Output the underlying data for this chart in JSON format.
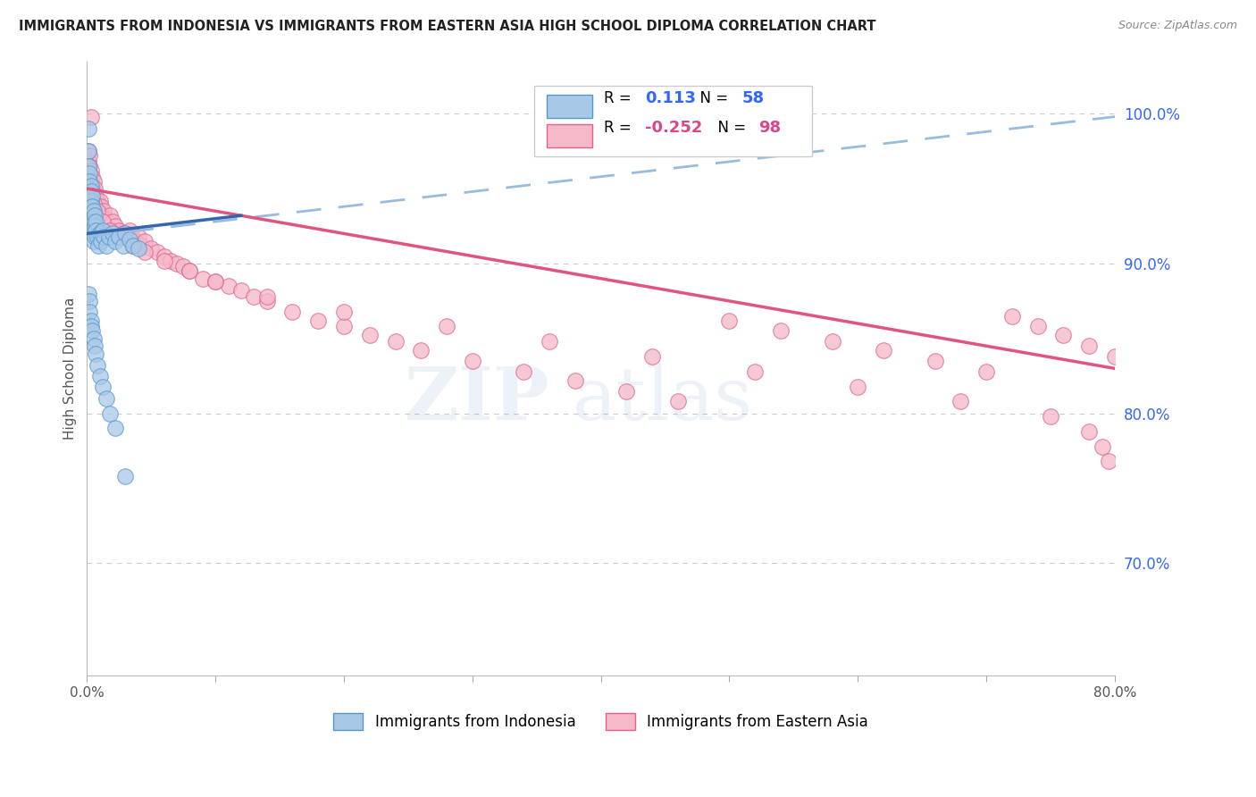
{
  "title": "IMMIGRANTS FROM INDONESIA VS IMMIGRANTS FROM EASTERN ASIA HIGH SCHOOL DIPLOMA CORRELATION CHART",
  "source": "Source: ZipAtlas.com",
  "ylabel": "High School Diploma",
  "xlim": [
    0.0,
    0.8
  ],
  "ylim": [
    0.625,
    1.035
  ],
  "y_ticks_right": [
    0.7,
    0.8,
    0.9,
    1.0
  ],
  "y_tick_labels_right": [
    "70.0%",
    "80.0%",
    "90.0%",
    "100.0%"
  ],
  "blue_fill": "#a8c8e8",
  "blue_edge": "#5599cc",
  "pink_fill": "#f5b8c8",
  "pink_edge": "#e06090",
  "blue_line": "#3366aa",
  "pink_line": "#e05580",
  "dash_line": "#99bbdd",
  "grid_color": "#cccccc",
  "r_blue": "0.113",
  "n_blue": "58",
  "r_pink": "-0.252",
  "n_pink": "98",
  "indo_x": [
    0.001,
    0.001,
    0.001,
    0.002,
    0.002,
    0.002,
    0.002,
    0.002,
    0.003,
    0.003,
    0.003,
    0.003,
    0.003,
    0.004,
    0.004,
    0.004,
    0.004,
    0.005,
    0.005,
    0.005,
    0.005,
    0.006,
    0.006,
    0.006,
    0.007,
    0.007,
    0.008,
    0.009,
    0.01,
    0.011,
    0.012,
    0.013,
    0.015,
    0.017,
    0.02,
    0.022,
    0.025,
    0.028,
    0.03,
    0.033,
    0.036,
    0.04,
    0.001,
    0.002,
    0.002,
    0.003,
    0.003,
    0.004,
    0.005,
    0.006,
    0.007,
    0.008,
    0.01,
    0.012,
    0.015,
    0.018,
    0.022,
    0.03
  ],
  "indo_y": [
    0.99,
    0.975,
    0.965,
    0.96,
    0.955,
    0.95,
    0.945,
    0.94,
    0.952,
    0.948,
    0.942,
    0.938,
    0.932,
    0.945,
    0.938,
    0.928,
    0.922,
    0.935,
    0.928,
    0.92,
    0.915,
    0.932,
    0.925,
    0.918,
    0.928,
    0.922,
    0.918,
    0.912,
    0.92,
    0.915,
    0.922,
    0.918,
    0.912,
    0.918,
    0.92,
    0.915,
    0.918,
    0.912,
    0.92,
    0.916,
    0.912,
    0.91,
    0.88,
    0.875,
    0.868,
    0.862,
    0.858,
    0.855,
    0.85,
    0.845,
    0.84,
    0.832,
    0.825,
    0.818,
    0.81,
    0.8,
    0.79,
    0.758
  ],
  "east_x": [
    0.001,
    0.001,
    0.002,
    0.002,
    0.002,
    0.003,
    0.003,
    0.003,
    0.004,
    0.004,
    0.004,
    0.005,
    0.005,
    0.005,
    0.006,
    0.006,
    0.007,
    0.007,
    0.008,
    0.008,
    0.009,
    0.01,
    0.01,
    0.011,
    0.012,
    0.013,
    0.015,
    0.016,
    0.018,
    0.02,
    0.022,
    0.025,
    0.028,
    0.03,
    0.033,
    0.035,
    0.038,
    0.04,
    0.042,
    0.045,
    0.05,
    0.055,
    0.06,
    0.065,
    0.07,
    0.075,
    0.08,
    0.09,
    0.1,
    0.11,
    0.12,
    0.13,
    0.14,
    0.16,
    0.18,
    0.2,
    0.22,
    0.24,
    0.26,
    0.3,
    0.34,
    0.38,
    0.42,
    0.46,
    0.5,
    0.54,
    0.58,
    0.62,
    0.66,
    0.7,
    0.72,
    0.74,
    0.76,
    0.78,
    0.8,
    0.003,
    0.005,
    0.008,
    0.012,
    0.018,
    0.025,
    0.035,
    0.045,
    0.06,
    0.08,
    0.1,
    0.14,
    0.2,
    0.28,
    0.36,
    0.44,
    0.52,
    0.6,
    0.68,
    0.75,
    0.78,
    0.79,
    0.795
  ],
  "east_y": [
    0.975,
    0.968,
    0.972,
    0.965,
    0.958,
    0.962,
    0.955,
    0.948,
    0.958,
    0.95,
    0.942,
    0.955,
    0.948,
    0.94,
    0.95,
    0.942,
    0.945,
    0.938,
    0.942,
    0.935,
    0.938,
    0.942,
    0.935,
    0.938,
    0.932,
    0.935,
    0.93,
    0.928,
    0.932,
    0.928,
    0.925,
    0.922,
    0.92,
    0.918,
    0.922,
    0.918,
    0.915,
    0.918,
    0.912,
    0.915,
    0.91,
    0.908,
    0.905,
    0.902,
    0.9,
    0.898,
    0.895,
    0.89,
    0.888,
    0.885,
    0.882,
    0.878,
    0.875,
    0.868,
    0.862,
    0.858,
    0.852,
    0.848,
    0.842,
    0.835,
    0.828,
    0.822,
    0.815,
    0.808,
    0.862,
    0.855,
    0.848,
    0.842,
    0.835,
    0.828,
    0.865,
    0.858,
    0.852,
    0.845,
    0.838,
    0.998,
    0.94,
    0.935,
    0.928,
    0.922,
    0.918,
    0.912,
    0.908,
    0.902,
    0.895,
    0.888,
    0.878,
    0.868,
    0.858,
    0.848,
    0.838,
    0.828,
    0.818,
    0.808,
    0.798,
    0.788,
    0.778,
    0.768
  ]
}
